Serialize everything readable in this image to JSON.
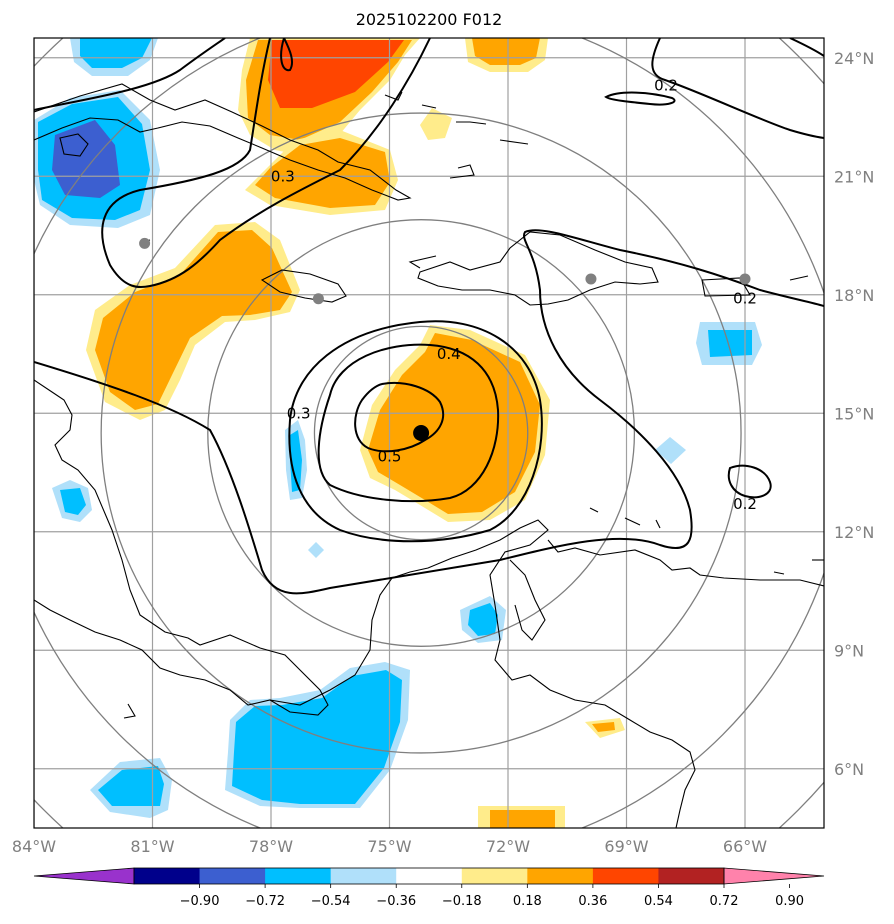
{
  "title": "2025102200 F012",
  "map": {
    "lon_range": [
      -84,
      -64
    ],
    "lat_range": [
      4.5,
      24.5
    ],
    "lon_ticks": [
      {
        "value": -84,
        "label": "84°W"
      },
      {
        "value": -81,
        "label": "81°W"
      },
      {
        "value": -78,
        "label": "78°W"
      },
      {
        "value": -75,
        "label": "75°W"
      },
      {
        "value": -72,
        "label": "72°W"
      },
      {
        "value": -69,
        "label": "69°W"
      },
      {
        "value": -66,
        "label": "66°W"
      }
    ],
    "lat_ticks": [
      {
        "value": 24,
        "label": "24°N"
      },
      {
        "value": 21,
        "label": "21°N"
      },
      {
        "value": 18,
        "label": "18°N"
      },
      {
        "value": 15,
        "label": "15°N"
      },
      {
        "value": 12,
        "label": "12°N"
      },
      {
        "value": 9,
        "label": "9°N"
      },
      {
        "value": 6,
        "label": "6°N"
      }
    ],
    "grid": true,
    "storm_center": {
      "lon": -74.2,
      "lat": 14.5
    },
    "range_ring_count": 5,
    "station_markers": [
      {
        "lon": -81.2,
        "lat": 19.3
      },
      {
        "lon": -76.8,
        "lat": 17.9
      },
      {
        "lon": -69.9,
        "lat": 18.4
      },
      {
        "lon": -66.0,
        "lat": 18.4
      }
    ],
    "contour_labels": [
      {
        "text": "0.5",
        "lon": -75.0,
        "lat": 13.9
      },
      {
        "text": "0.4",
        "lon": -73.5,
        "lat": 16.5
      },
      {
        "text": "0.3",
        "lon": -77.3,
        "lat": 15.0
      },
      {
        "text": "0.3",
        "lon": -77.7,
        "lat": 21.0
      },
      {
        "text": "0.2",
        "lon": -68.0,
        "lat": 23.3
      },
      {
        "text": "0.2",
        "lon": -66.0,
        "lat": 17.9
      },
      {
        "text": "0.2",
        "lon": -66.0,
        "lat": 12.7
      }
    ]
  },
  "colorbar": {
    "colors": [
      "#9932cc",
      "#00008b",
      "#3c5fd0",
      "#00bfff",
      "#b0e0fa",
      "#ffffff",
      "#ffec8b",
      "#ffa500",
      "#ff4500",
      "#b22222",
      "#ff82ab"
    ],
    "tick_labels": [
      "−0.90",
      "−0.72",
      "−0.54",
      "−0.36",
      "−0.18",
      "0.18",
      "0.36",
      "0.54",
      "0.72",
      "0.90"
    ]
  }
}
